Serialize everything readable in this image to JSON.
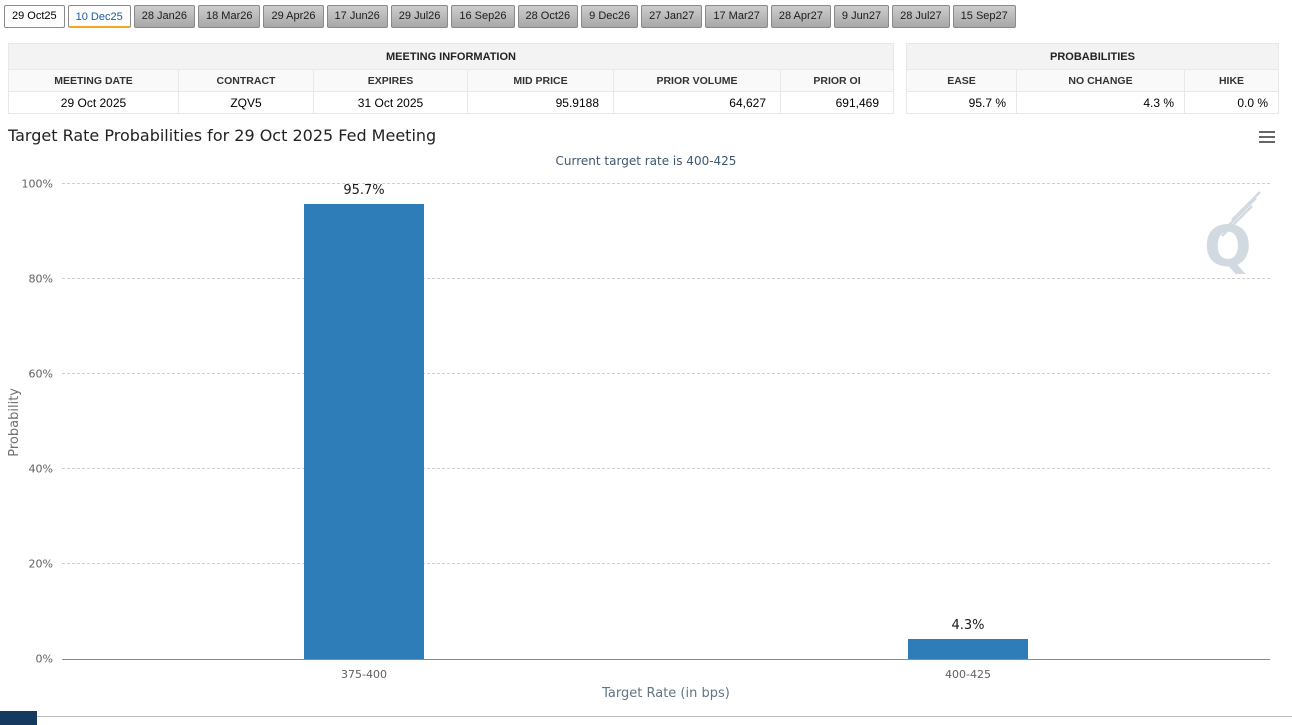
{
  "tabs": [
    {
      "label": "29 Oct25",
      "state": "active"
    },
    {
      "label": "10 Dec25",
      "state": "highlight"
    },
    {
      "label": "28 Jan26",
      "state": "default"
    },
    {
      "label": "18 Mar26",
      "state": "default"
    },
    {
      "label": "29 Apr26",
      "state": "default"
    },
    {
      "label": "17 Jun26",
      "state": "default"
    },
    {
      "label": "29 Jul26",
      "state": "default"
    },
    {
      "label": "16 Sep26",
      "state": "default"
    },
    {
      "label": "28 Oct26",
      "state": "default"
    },
    {
      "label": "9 Dec26",
      "state": "default"
    },
    {
      "label": "27 Jan27",
      "state": "default"
    },
    {
      "label": "17 Mar27",
      "state": "default"
    },
    {
      "label": "28 Apr27",
      "state": "default"
    },
    {
      "label": "9 Jun27",
      "state": "default"
    },
    {
      "label": "28 Jul27",
      "state": "default"
    },
    {
      "label": "15 Sep27",
      "state": "default"
    }
  ],
  "meeting_info": {
    "title": "MEETING INFORMATION",
    "columns": [
      "MEETING DATE",
      "CONTRACT",
      "EXPIRES",
      "MID PRICE",
      "PRIOR VOLUME",
      "PRIOR OI"
    ],
    "row": [
      "29 Oct 2025",
      "ZQV5",
      "31 Oct 2025",
      "95.9188",
      "64,627",
      "691,469"
    ]
  },
  "probabilities": {
    "title": "PROBABILITIES",
    "columns": [
      "EASE",
      "NO CHANGE",
      "HIKE"
    ],
    "row": [
      "95.7 %",
      "4.3 %",
      "0.0 %"
    ]
  },
  "chart_data": {
    "type": "bar",
    "title": "Target Rate Probabilities for 29 Oct 2025 Fed Meeting",
    "subtitle": "Current target rate is 400-425",
    "categories": [
      "375-400",
      "400-425"
    ],
    "values": [
      95.7,
      4.3
    ],
    "value_labels": [
      "95.7%",
      "4.3%"
    ],
    "xlabel": "Target Rate (in bps)",
    "ylabel": "Probability",
    "ylim": [
      0,
      100
    ],
    "ytick_interval": 20,
    "bar_color": "#2e7cb8",
    "grid": "dashed-horizontal",
    "legend": "none"
  },
  "watermark": {
    "letter": "Q"
  },
  "colors": {
    "bar": "#2e7cb8",
    "subtitle_text": "#3e576f",
    "tab_highlight_text": "#1d5ba6",
    "tab_underline": "#f5a623",
    "footer_chip": "#16395f"
  }
}
